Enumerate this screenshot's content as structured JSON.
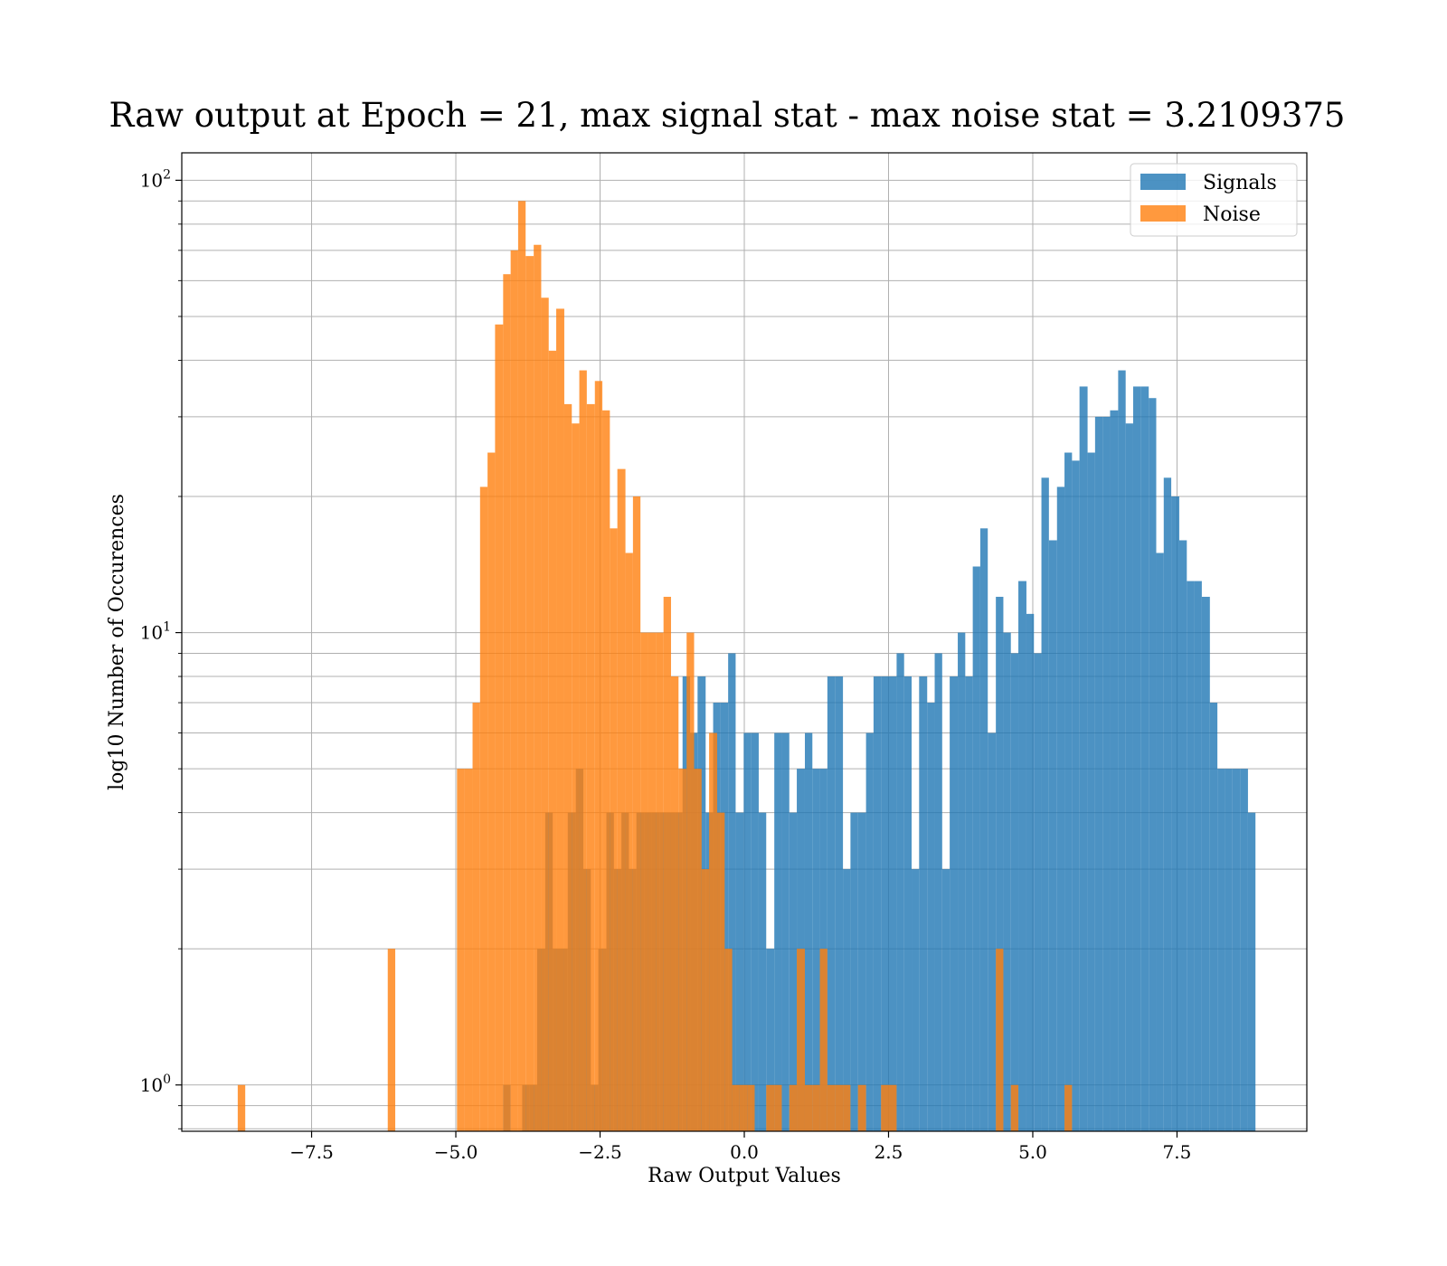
{
  "chart_data": {
    "type": "histogram",
    "title": "Raw output at Epoch = 21, max signal stat - max noise stat = 3.2109375",
    "xlabel": "Raw Output Values",
    "ylabel": "log10 Number of Occurences",
    "xlim": [
      -9.75,
      9.75
    ],
    "ylim": [
      0.79,
      115
    ],
    "yscale": "log",
    "grid": true,
    "legend_position": "top-right",
    "x_ticks": [
      {
        "value": -7.5,
        "label": "−7.5"
      },
      {
        "value": -5.0,
        "label": "−5.0"
      },
      {
        "value": -2.5,
        "label": "−2.5"
      },
      {
        "value": 0.0,
        "label": "0.0"
      },
      {
        "value": 2.5,
        "label": "2.5"
      },
      {
        "value": 5.0,
        "label": "5.0"
      },
      {
        "value": 7.5,
        "label": "7.5"
      }
    ],
    "y_ticks": [
      {
        "value": 1,
        "base": "10",
        "exp": "0"
      },
      {
        "value": 10,
        "base": "10",
        "exp": "1"
      },
      {
        "value": 100,
        "base": "10",
        "exp": "2"
      }
    ],
    "series": [
      {
        "name": "Signals",
        "color": "#1f77b4",
        "opacity": 0.8,
        "bins": [
          [
            -4.18,
            -4.05,
            1
          ],
          [
            -3.85,
            -3.72,
            1
          ],
          [
            -3.72,
            -3.59,
            1
          ],
          [
            -3.59,
            -3.45,
            2
          ],
          [
            -3.45,
            -3.32,
            4
          ],
          [
            -3.32,
            -3.19,
            2
          ],
          [
            -3.19,
            -3.06,
            2
          ],
          [
            -3.06,
            -2.92,
            4
          ],
          [
            -2.92,
            -2.79,
            5
          ],
          [
            -2.79,
            -2.66,
            3
          ],
          [
            -2.66,
            -2.53,
            1
          ],
          [
            -2.53,
            -2.39,
            2
          ],
          [
            -2.39,
            -2.26,
            4
          ],
          [
            -2.26,
            -2.13,
            3
          ],
          [
            -2.13,
            -2.0,
            4
          ],
          [
            -2.0,
            -1.87,
            3
          ],
          [
            -1.87,
            -1.73,
            4
          ],
          [
            -1.73,
            -1.6,
            4
          ],
          [
            -1.6,
            -1.47,
            4
          ],
          [
            -1.47,
            -1.34,
            4
          ],
          [
            -1.34,
            -1.2,
            4
          ],
          [
            -1.2,
            -1.07,
            4
          ],
          [
            -1.07,
            -0.94,
            8
          ],
          [
            -0.94,
            -0.81,
            6
          ],
          [
            -0.81,
            -0.67,
            8
          ],
          [
            -0.67,
            -0.54,
            4
          ],
          [
            -0.54,
            -0.41,
            7
          ],
          [
            -0.41,
            -0.28,
            7
          ],
          [
            -0.28,
            -0.15,
            9
          ],
          [
            -0.15,
            -0.01,
            4
          ],
          [
            -0.01,
            0.12,
            6
          ],
          [
            0.12,
            0.25,
            6
          ],
          [
            0.25,
            0.38,
            4
          ],
          [
            0.38,
            0.52,
            2
          ],
          [
            0.52,
            0.65,
            6
          ],
          [
            0.65,
            0.78,
            6
          ],
          [
            0.78,
            0.91,
            4
          ],
          [
            0.91,
            1.05,
            5
          ],
          [
            1.05,
            1.18,
            6
          ],
          [
            1.18,
            1.31,
            5
          ],
          [
            1.31,
            1.44,
            5
          ],
          [
            1.44,
            1.58,
            8
          ],
          [
            1.58,
            1.71,
            8
          ],
          [
            1.71,
            1.84,
            3
          ],
          [
            1.84,
            1.97,
            4
          ],
          [
            1.97,
            2.11,
            4
          ],
          [
            2.11,
            2.24,
            6
          ],
          [
            2.24,
            2.37,
            8
          ],
          [
            2.37,
            2.5,
            8
          ],
          [
            2.5,
            2.64,
            8
          ],
          [
            2.64,
            2.77,
            9
          ],
          [
            2.77,
            2.9,
            8
          ],
          [
            2.9,
            3.03,
            3
          ],
          [
            3.03,
            3.17,
            8
          ],
          [
            3.17,
            3.3,
            7
          ],
          [
            3.3,
            3.43,
            9
          ],
          [
            3.43,
            3.56,
            3
          ],
          [
            3.56,
            3.7,
            8
          ],
          [
            3.7,
            3.83,
            10
          ],
          [
            3.83,
            3.96,
            8
          ],
          [
            3.96,
            4.09,
            14
          ],
          [
            4.09,
            4.22,
            17
          ],
          [
            4.22,
            4.36,
            6
          ],
          [
            4.36,
            4.49,
            12
          ],
          [
            4.49,
            4.62,
            10
          ],
          [
            4.62,
            4.75,
            9
          ],
          [
            4.75,
            4.89,
            13
          ],
          [
            4.89,
            5.02,
            11
          ],
          [
            5.02,
            5.15,
            9
          ],
          [
            5.15,
            5.28,
            22
          ],
          [
            5.28,
            5.42,
            16
          ],
          [
            5.42,
            5.55,
            21
          ],
          [
            5.55,
            5.68,
            25
          ],
          [
            5.68,
            5.81,
            24
          ],
          [
            5.81,
            5.95,
            35
          ],
          [
            5.95,
            6.08,
            25
          ],
          [
            6.08,
            6.21,
            30
          ],
          [
            6.21,
            6.34,
            30
          ],
          [
            6.34,
            6.48,
            31
          ],
          [
            6.48,
            6.61,
            38
          ],
          [
            6.61,
            6.74,
            29
          ],
          [
            6.74,
            6.87,
            35
          ],
          [
            6.87,
            7.01,
            35
          ],
          [
            7.01,
            7.14,
            33
          ],
          [
            7.14,
            7.27,
            15
          ],
          [
            7.27,
            7.4,
            22
          ],
          [
            7.4,
            7.54,
            20
          ],
          [
            7.54,
            7.67,
            16
          ],
          [
            7.67,
            7.8,
            13
          ],
          [
            7.8,
            7.93,
            13
          ],
          [
            7.93,
            8.07,
            12
          ],
          [
            8.07,
            8.2,
            7
          ],
          [
            8.2,
            8.33,
            5
          ],
          [
            8.33,
            8.46,
            5
          ],
          [
            8.46,
            8.6,
            5
          ],
          [
            8.6,
            8.73,
            5
          ],
          [
            8.73,
            8.86,
            4
          ]
        ]
      },
      {
        "name": "Noise",
        "color": "#ff7f0e",
        "opacity": 0.8,
        "bins": [
          [
            -8.78,
            -8.65,
            1
          ],
          [
            -6.18,
            -6.05,
            2
          ],
          [
            -4.98,
            -4.85,
            5
          ],
          [
            -4.85,
            -4.71,
            5
          ],
          [
            -4.71,
            -4.58,
            7
          ],
          [
            -4.58,
            -4.45,
            21
          ],
          [
            -4.45,
            -4.32,
            25
          ],
          [
            -4.32,
            -4.18,
            48
          ],
          [
            -4.18,
            -4.05,
            62
          ],
          [
            -4.05,
            -3.92,
            70
          ],
          [
            -3.92,
            -3.79,
            90
          ],
          [
            -3.79,
            -3.65,
            68
          ],
          [
            -3.65,
            -3.52,
            72
          ],
          [
            -3.52,
            -3.39,
            55
          ],
          [
            -3.39,
            -3.26,
            42
          ],
          [
            -3.26,
            -3.12,
            52
          ],
          [
            -3.12,
            -2.99,
            32
          ],
          [
            -2.99,
            -2.86,
            29
          ],
          [
            -2.86,
            -2.73,
            38
          ],
          [
            -2.73,
            -2.59,
            32
          ],
          [
            -2.59,
            -2.46,
            36
          ],
          [
            -2.46,
            -2.33,
            31
          ],
          [
            -2.33,
            -2.2,
            17
          ],
          [
            -2.2,
            -2.06,
            23
          ],
          [
            -2.06,
            -1.93,
            15
          ],
          [
            -1.93,
            -1.8,
            20
          ],
          [
            -1.8,
            -1.67,
            10
          ],
          [
            -1.67,
            -1.53,
            10
          ],
          [
            -1.53,
            -1.4,
            10
          ],
          [
            -1.4,
            -1.27,
            12
          ],
          [
            -1.27,
            -1.14,
            8
          ],
          [
            -1.14,
            -1.0,
            5
          ],
          [
            -1.0,
            -0.87,
            10
          ],
          [
            -0.87,
            -0.74,
            5
          ],
          [
            -0.74,
            -0.61,
            3
          ],
          [
            -0.61,
            -0.47,
            6
          ],
          [
            -0.47,
            -0.34,
            4
          ],
          [
            -0.34,
            -0.21,
            2
          ],
          [
            -0.21,
            -0.08,
            1
          ],
          [
            -0.08,
            0.05,
            1
          ],
          [
            0.05,
            0.18,
            1
          ],
          [
            0.38,
            0.52,
            1
          ],
          [
            0.52,
            0.65,
            1
          ],
          [
            0.78,
            0.91,
            1
          ],
          [
            0.91,
            1.05,
            2
          ],
          [
            1.05,
            1.18,
            1
          ],
          [
            1.18,
            1.31,
            1
          ],
          [
            1.31,
            1.44,
            2
          ],
          [
            1.44,
            1.58,
            1
          ],
          [
            1.58,
            1.71,
            1
          ],
          [
            1.71,
            1.84,
            1
          ],
          [
            1.97,
            2.11,
            1
          ],
          [
            2.37,
            2.5,
            1
          ],
          [
            2.5,
            2.64,
            1
          ],
          [
            4.36,
            4.49,
            2
          ],
          [
            4.62,
            4.75,
            1
          ],
          [
            5.55,
            5.68,
            1
          ]
        ]
      }
    ]
  }
}
